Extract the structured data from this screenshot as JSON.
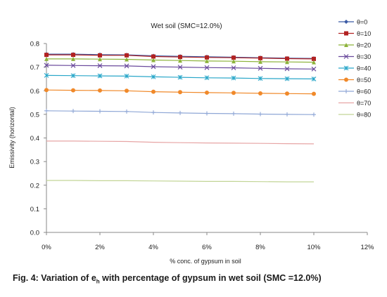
{
  "chart_data": {
    "type": "line",
    "title": "Wet soil (SMC=12.0%)",
    "xlabel": "% conc. of gypsum in soil",
    "ylabel": "Emissivity (horizontal)",
    "x": [
      0,
      1,
      2,
      3,
      4,
      5,
      6,
      7,
      8,
      9,
      10
    ],
    "xlim": [
      0,
      12
    ],
    "ylim": [
      0,
      0.8
    ],
    "x_ticks": [
      "0%",
      "2%",
      "4%",
      "6%",
      "8%",
      "10%",
      "12%"
    ],
    "y_ticks": [
      "0.0",
      "0.1",
      "0.2",
      "0.3",
      "0.4",
      "0.5",
      "0.6",
      "0.7",
      "0.8"
    ],
    "grid": false,
    "legend_placement": "right",
    "series": [
      {
        "name": "θ=0",
        "color": "#3b5ba5",
        "marker": "diamond",
        "values": [
          0.755,
          0.755,
          0.753,
          0.752,
          0.748,
          0.746,
          0.744,
          0.742,
          0.74,
          0.738,
          0.737
        ]
      },
      {
        "name": "θ=10",
        "color": "#b22222",
        "marker": "square",
        "values": [
          0.752,
          0.752,
          0.75,
          0.75,
          0.745,
          0.743,
          0.741,
          0.74,
          0.738,
          0.736,
          0.735
        ]
      },
      {
        "name": "θ=20",
        "color": "#8db33b",
        "marker": "triangle",
        "values": [
          0.735,
          0.735,
          0.734,
          0.733,
          0.73,
          0.728,
          0.726,
          0.725,
          0.723,
          0.722,
          0.721
        ]
      },
      {
        "name": "θ=30",
        "color": "#6a4a9c",
        "marker": "x",
        "values": [
          0.708,
          0.707,
          0.706,
          0.705,
          0.702,
          0.7,
          0.698,
          0.697,
          0.695,
          0.693,
          0.692
        ]
      },
      {
        "name": "θ=40",
        "color": "#2aa7c9",
        "marker": "asterisk",
        "values": [
          0.665,
          0.664,
          0.663,
          0.662,
          0.659,
          0.657,
          0.655,
          0.654,
          0.652,
          0.651,
          0.65
        ]
      },
      {
        "name": "θ=50",
        "color": "#f0892a",
        "marker": "circle",
        "values": [
          0.603,
          0.602,
          0.601,
          0.6,
          0.596,
          0.594,
          0.592,
          0.591,
          0.589,
          0.588,
          0.587
        ]
      },
      {
        "name": "θ=60",
        "color": "#8fa7d6",
        "marker": "plus",
        "values": [
          0.515,
          0.514,
          0.513,
          0.512,
          0.508,
          0.506,
          0.504,
          0.503,
          0.501,
          0.5,
          0.499
        ]
      },
      {
        "name": "θ=70",
        "color": "#e7a5a5",
        "marker": "none",
        "values": [
          0.387,
          0.387,
          0.386,
          0.385,
          0.382,
          0.38,
          0.379,
          0.378,
          0.377,
          0.376,
          0.375
        ]
      },
      {
        "name": "θ=80",
        "color": "#c2d596",
        "marker": "none",
        "values": [
          0.22,
          0.22,
          0.219,
          0.219,
          0.218,
          0.217,
          0.216,
          0.216,
          0.215,
          0.214,
          0.214
        ]
      }
    ]
  },
  "caption": {
    "prefix": "Fig. 4: Variation of e",
    "subscript": "h",
    "suffix": " with percentage of gypsum in wet soil (SMC =12.0%)"
  }
}
